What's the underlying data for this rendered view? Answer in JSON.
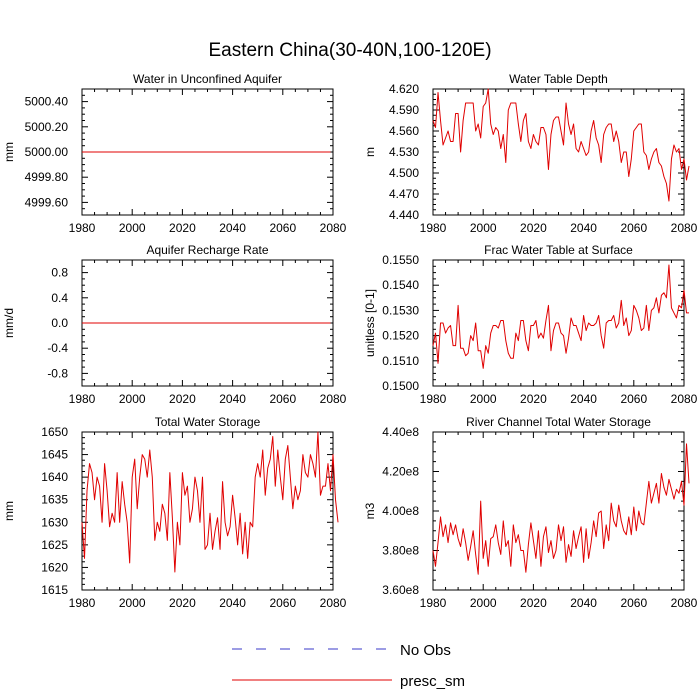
{
  "title": "Eastern China(30-40N,100-120E)",
  "legend": [
    {
      "label": "No Obs",
      "color": "#3a3ac8",
      "style": "dashed"
    },
    {
      "label": "presc_sm",
      "color": "#e00000",
      "style": "solid"
    }
  ],
  "colors": {
    "series": "#e00000",
    "axis": "#000000"
  },
  "chart_data": [
    {
      "type": "line",
      "title": "Water in Unconfined Aquifer",
      "ylabel": "mm",
      "xlim": [
        1980,
        2080
      ],
      "ylim": [
        4999.5,
        5000.5
      ],
      "xticks": [
        1980,
        2000,
        2020,
        2040,
        2060,
        2080
      ],
      "yticks": [
        4999.6,
        4999.8,
        5000.0,
        5000.2,
        5000.4
      ],
      "ytick_labels": [
        "4999.60",
        "4999.80",
        "5000.00",
        "5000.20",
        "5000.40"
      ],
      "series": [
        {
          "name": "presc_sm",
          "x": [
            1980,
            2079
          ],
          "values": [
            5000.0,
            5000.0
          ]
        }
      ]
    },
    {
      "type": "line",
      "title": "Water Table Depth",
      "ylabel": "m",
      "xlim": [
        1980,
        2080
      ],
      "ylim": [
        4.44,
        4.62
      ],
      "xticks": [
        1980,
        2000,
        2020,
        2040,
        2060,
        2080
      ],
      "yticks": [
        4.44,
        4.47,
        4.5,
        4.53,
        4.56,
        4.59,
        4.62
      ],
      "ytick_labels": [
        "4.440",
        "4.470",
        "4.500",
        "4.530",
        "4.560",
        "4.590",
        "4.620"
      ],
      "series": [
        {
          "name": "presc_sm",
          "x_start": 1980,
          "x_step": 1,
          "values": [
            4.575,
            4.565,
            4.615,
            4.575,
            4.54,
            4.55,
            4.56,
            4.545,
            4.545,
            4.585,
            4.585,
            4.53,
            4.575,
            4.6,
            4.6,
            4.6,
            4.6,
            4.56,
            4.57,
            4.55,
            4.595,
            4.6,
            4.62,
            4.57,
            4.555,
            4.565,
            4.56,
            4.535,
            4.555,
            4.515,
            4.59,
            4.6,
            4.6,
            4.6,
            4.57,
            4.545,
            4.575,
            4.585,
            4.545,
            4.535,
            4.555,
            4.545,
            4.54,
            4.565,
            4.565,
            4.555,
            4.505,
            4.555,
            4.575,
            4.58,
            4.58,
            4.56,
            4.54,
            4.6,
            4.57,
            4.555,
            4.57,
            4.535,
            4.53,
            4.545,
            4.535,
            4.525,
            4.53,
            4.56,
            4.575,
            4.55,
            4.54,
            4.515,
            4.555,
            4.565,
            4.57,
            4.57,
            4.545,
            4.56,
            4.545,
            4.515,
            4.53,
            4.53,
            4.495,
            4.52,
            4.56,
            4.565,
            4.57,
            4.57,
            4.53,
            4.525,
            4.505,
            4.52,
            4.53,
            4.535,
            4.515,
            4.51,
            4.495,
            4.485,
            4.46,
            4.52,
            4.54,
            4.53,
            4.535,
            4.505,
            4.52,
            4.49,
            4.51
          ]
        }
      ]
    },
    {
      "type": "line",
      "title": "Aquifer Recharge Rate",
      "ylabel": "mm/d",
      "xlim": [
        1980,
        2080
      ],
      "ylim": [
        -1.0,
        1.0
      ],
      "xticks": [
        1980,
        2000,
        2020,
        2040,
        2060,
        2080
      ],
      "yticks": [
        -0.8,
        -0.4,
        0.0,
        0.4,
        0.8
      ],
      "ytick_labels": [
        "-0.8",
        "-0.4",
        "0.0",
        "0.4",
        "0.8"
      ],
      "series": [
        {
          "name": "presc_sm",
          "x": [
            1980,
            2079
          ],
          "values": [
            0.0,
            0.0
          ]
        }
      ]
    },
    {
      "type": "line",
      "title": "Frac Water Table at Surface",
      "ylabel": "unitless [0-1]",
      "xlim": [
        1980,
        2080
      ],
      "ylim": [
        0.15,
        0.155
      ],
      "xticks": [
        1980,
        2000,
        2020,
        2040,
        2060,
        2080
      ],
      "yticks": [
        0.15,
        0.151,
        0.152,
        0.153,
        0.154,
        0.155
      ],
      "ytick_labels": [
        "0.1500",
        "0.1510",
        "0.1520",
        "0.1530",
        "0.1540",
        "0.1550"
      ],
      "series": [
        {
          "name": "presc_sm",
          "x_start": 1980,
          "x_step": 1,
          "values": [
            0.1516,
            0.1521,
            0.1509,
            0.1525,
            0.1525,
            0.1521,
            0.1523,
            0.1524,
            0.1516,
            0.1516,
            0.1532,
            0.1515,
            0.1515,
            0.1512,
            0.1513,
            0.152,
            0.1518,
            0.1525,
            0.1514,
            0.1514,
            0.1507,
            0.1516,
            0.1513,
            0.1521,
            0.1524,
            0.1524,
            0.1523,
            0.1526,
            0.1526,
            0.1518,
            0.1513,
            0.1511,
            0.1511,
            0.1521,
            0.1518,
            0.1526,
            0.1526,
            0.1518,
            0.1514,
            0.1524,
            0.1524,
            0.1526,
            0.1519,
            0.1521,
            0.1519,
            0.1526,
            0.1532,
            0.1514,
            0.1522,
            0.1525,
            0.1525,
            0.1521,
            0.152,
            0.1513,
            0.1519,
            0.1527,
            0.1524,
            0.1524,
            0.1521,
            0.1518,
            0.1528,
            0.1522,
            0.1525,
            0.1524,
            0.1524,
            0.1525,
            0.1528,
            0.152,
            0.1515,
            0.1525,
            0.1526,
            0.1526,
            0.1528,
            0.1523,
            0.1525,
            0.1534,
            0.1524,
            0.1527,
            0.152,
            0.1522,
            0.1532,
            0.153,
            0.1527,
            0.1522,
            0.1523,
            0.1532,
            0.1522,
            0.153,
            0.1531,
            0.1535,
            0.1529,
            0.1536,
            0.1537,
            0.1535,
            0.1548,
            0.1531,
            0.1529,
            0.1527,
            0.1532,
            0.1531,
            0.1538,
            0.1529,
            0.1529
          ]
        }
      ]
    },
    {
      "type": "line",
      "title": "Total Water Storage",
      "ylabel": "mm",
      "xlim": [
        1980,
        2080
      ],
      "ylim": [
        1615,
        1650
      ],
      "xticks": [
        1980,
        2000,
        2020,
        2040,
        2060,
        2080
      ],
      "yticks": [
        1615,
        1620,
        1625,
        1630,
        1635,
        1640,
        1645,
        1650
      ],
      "ytick_labels": [
        "1615",
        "1620",
        "1625",
        "1630",
        "1635",
        "1640",
        "1645",
        "1650"
      ],
      "series": [
        {
          "name": "presc_sm",
          "x_start": 1980,
          "x_step": 1,
          "values": [
            1630,
            1622,
            1637,
            1643,
            1641,
            1635,
            1640,
            1638,
            1630,
            1643,
            1637,
            1629,
            1632,
            1630,
            1641,
            1630,
            1639,
            1634,
            1630,
            1621,
            1640,
            1644,
            1633,
            1640,
            1645,
            1644,
            1640,
            1646,
            1640,
            1626,
            1630,
            1628,
            1634,
            1632,
            1626,
            1641,
            1631,
            1619,
            1630,
            1625,
            1641,
            1636,
            1638,
            1630,
            1633,
            1640,
            1637,
            1630,
            1640,
            1624,
            1625,
            1632,
            1624,
            1628,
            1631,
            1624,
            1639,
            1630,
            1627,
            1629,
            1636,
            1631,
            1625,
            1632,
            1623,
            1630,
            1622,
            1630,
            1629,
            1640,
            1643,
            1640,
            1646,
            1636,
            1642,
            1644,
            1649,
            1638,
            1646,
            1640,
            1635,
            1644,
            1647,
            1640,
            1633,
            1638,
            1635,
            1637,
            1645,
            1641,
            1640,
            1645,
            1643,
            1640,
            1650,
            1636,
            1638,
            1638,
            1643,
            1637,
            1645,
            1635,
            1630
          ]
        }
      ]
    },
    {
      "type": "line",
      "title": "River Channel Total Water Storage",
      "ylabel": "m3",
      "xlim": [
        1980,
        2080
      ],
      "ylim": [
        360000000,
        440000000
      ],
      "xticks": [
        1980,
        2000,
        2020,
        2040,
        2060,
        2080
      ],
      "yticks": [
        360000000,
        380000000,
        400000000,
        420000000,
        440000000
      ],
      "ytick_labels": [
        "3.60e8",
        "3.80e8",
        "4.00e8",
        "4.20e8",
        "4.40e8"
      ],
      "series": [
        {
          "name": "presc_sm",
          "x_start": 1980,
          "x_step": 1,
          "values": [
            380000000,
            372000000,
            384000000,
            397000000,
            387000000,
            393000000,
            384000000,
            394000000,
            388000000,
            393000000,
            386000000,
            382000000,
            391000000,
            384000000,
            375000000,
            382000000,
            390000000,
            378000000,
            368000000,
            405000000,
            376000000,
            385000000,
            372000000,
            386000000,
            387000000,
            393000000,
            384000000,
            378000000,
            395000000,
            382000000,
            385000000,
            372000000,
            393000000,
            384000000,
            388000000,
            380000000,
            380000000,
            369000000,
            383000000,
            394000000,
            385000000,
            376000000,
            390000000,
            372000000,
            387000000,
            392000000,
            379000000,
            385000000,
            376000000,
            380000000,
            393000000,
            385000000,
            392000000,
            374000000,
            383000000,
            377000000,
            390000000,
            381000000,
            387000000,
            392000000,
            374000000,
            391000000,
            376000000,
            384000000,
            395000000,
            387000000,
            399000000,
            400000000,
            381000000,
            393000000,
            385000000,
            404000000,
            395000000,
            392000000,
            403000000,
            395000000,
            390000000,
            388000000,
            397000000,
            388000000,
            402000000,
            390000000,
            400000000,
            394000000,
            393000000,
            404000000,
            415000000,
            404000000,
            409000000,
            414000000,
            404000000,
            419000000,
            412000000,
            408000000,
            416000000,
            411000000,
            406000000,
            411000000,
            409000000,
            415000000,
            403000000,
            434000000,
            414000000
          ]
        }
      ]
    }
  ]
}
